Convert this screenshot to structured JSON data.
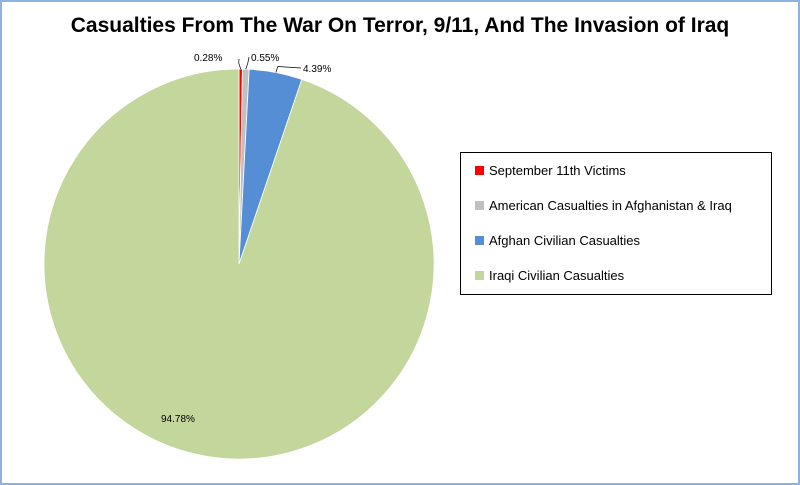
{
  "chart_data": {
    "type": "pie",
    "title": "Casualties From The War On Terror,  9/11, And The Invasion of Iraq",
    "series": [
      {
        "name": "September 11th Victims",
        "value": 0.28,
        "label": "0.28%",
        "color": "#ff0000"
      },
      {
        "name": "American Casualties in Afghanistan & Iraq",
        "value": 0.55,
        "label": "0.55%",
        "color": "#c0c0c0"
      },
      {
        "name": "Afghan Civilian Casualties",
        "value": 4.39,
        "label": "4.39%",
        "color": "#558ed5"
      },
      {
        "name": "Iraqi Civilian Casualties",
        "value": 94.78,
        "label": "94.78%",
        "color": "#c3d69b"
      }
    ],
    "legend_position": "right"
  }
}
